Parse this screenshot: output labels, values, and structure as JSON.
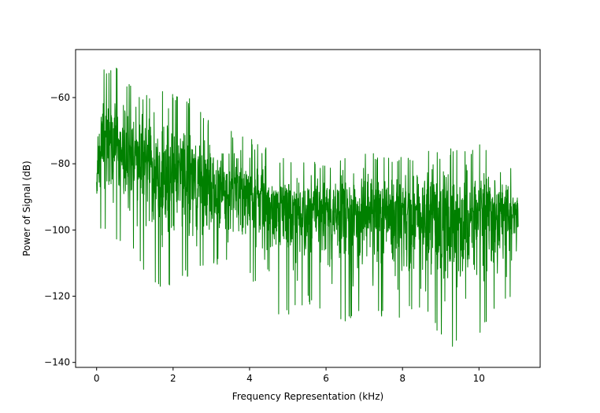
{
  "chart_data": {
    "type": "line",
    "title": "",
    "xlabel": "Frequency Representation (kHz)",
    "ylabel": "Power of Signal (dB)",
    "xlim": [
      -0.55,
      11.6
    ],
    "ylim": [
      -141.5,
      -45.5
    ],
    "xticks": [
      0,
      2,
      4,
      6,
      8,
      10
    ],
    "yticks": [
      -140,
      -120,
      -100,
      -80,
      -60
    ],
    "xtick_labels": [
      "0",
      "2",
      "4",
      "6",
      "8",
      "10"
    ],
    "ytick_labels": [
      "−140",
      "−120",
      "−100",
      "−80",
      "−60"
    ],
    "grid": false,
    "legend": "none",
    "line_color": "#008000",
    "series": [
      {
        "x_range": [
          0,
          11.025
        ],
        "num_points": 2048,
        "trend_mean": [
          [
            0.0,
            -86
          ],
          [
            0.1,
            -72
          ],
          [
            0.5,
            -74
          ],
          [
            1.0,
            -77
          ],
          [
            1.5,
            -81
          ],
          [
            2.0,
            -83
          ],
          [
            2.5,
            -84
          ],
          [
            3.0,
            -86
          ],
          [
            3.5,
            -88
          ],
          [
            4.0,
            -89
          ],
          [
            4.5,
            -91
          ],
          [
            5.0,
            -93
          ],
          [
            6.0,
            -94
          ],
          [
            7.0,
            -95
          ],
          [
            8.0,
            -95
          ],
          [
            9.0,
            -95
          ],
          [
            10.0,
            -95
          ],
          [
            11.025,
            -94
          ]
        ],
        "envelope_max": [
          [
            0.0,
            -80
          ],
          [
            0.05,
            -52
          ],
          [
            0.3,
            -51
          ],
          [
            0.45,
            -48
          ],
          [
            0.7,
            -53
          ],
          [
            1.0,
            -56
          ],
          [
            1.2,
            -58
          ],
          [
            1.7,
            -58
          ],
          [
            2.4,
            -59
          ],
          [
            3.0,
            -67
          ],
          [
            3.5,
            -69
          ],
          [
            4.0,
            -72
          ],
          [
            4.5,
            -75
          ],
          [
            5.0,
            -78
          ],
          [
            6.0,
            -79
          ],
          [
            7.0,
            -75
          ],
          [
            8.0,
            -78
          ],
          [
            8.7,
            -74
          ],
          [
            9.5,
            -75
          ],
          [
            10.5,
            -73
          ],
          [
            11.025,
            -86
          ]
        ],
        "envelope_min": [
          [
            0.0,
            -100
          ],
          [
            0.3,
            -102
          ],
          [
            0.8,
            -104
          ],
          [
            1.5,
            -118
          ],
          [
            2.0,
            -119
          ],
          [
            2.5,
            -113
          ],
          [
            3.0,
            -110
          ],
          [
            4.0,
            -114
          ],
          [
            4.7,
            -128
          ],
          [
            5.5,
            -122
          ],
          [
            6.5,
            -128
          ],
          [
            7.0,
            -124
          ],
          [
            7.8,
            -128
          ],
          [
            8.5,
            -124
          ],
          [
            9.15,
            -136
          ],
          [
            10.0,
            -132
          ],
          [
            10.5,
            -124
          ],
          [
            11.025,
            -119
          ]
        ]
      }
    ]
  }
}
